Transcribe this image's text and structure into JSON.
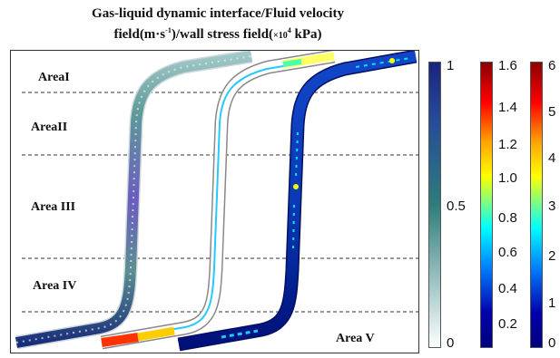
{
  "title": {
    "line1": "Gas-liquid dynamic interface/Fluid velocity",
    "line2_prefix": "field(m·s",
    "line2_sup": "-1",
    "line2_mid": ")/wall stress field(",
    "line2_unit_small": "×10",
    "line2_unit_sup": "4",
    "line2_suffix": " kPa)"
  },
  "areas": [
    {
      "label": "AreaI"
    },
    {
      "label": "AreaII"
    },
    {
      "label": "Area III"
    },
    {
      "label": "Area IV"
    },
    {
      "label": "Area V"
    }
  ],
  "colorbars": [
    {
      "name": "gas-liquid-interface",
      "ticks": [
        "1",
        "0.5",
        "0"
      ],
      "colors": [
        "#1a237e",
        "#2e7d7a",
        "#ffffff"
      ]
    },
    {
      "name": "fluid-velocity",
      "ticks": [
        "1.6",
        "1.4",
        "1.2",
        "1.0",
        "0.8",
        "0.6",
        "0.4",
        "0.2"
      ],
      "colors": [
        "#8b0000",
        "#ff0000",
        "#ffa500",
        "#ffff00",
        "#00ffff",
        "#0080ff",
        "#0000aa",
        "#000080"
      ]
    },
    {
      "name": "wall-stress",
      "ticks": [
        "6",
        "5",
        "4",
        "3",
        "2",
        "1",
        "0"
      ],
      "colors": [
        "#8b0000",
        "#ff0000",
        "#ffa500",
        "#ffff00",
        "#00ffff",
        "#0080ff",
        "#0000aa",
        "#000080"
      ]
    }
  ]
}
